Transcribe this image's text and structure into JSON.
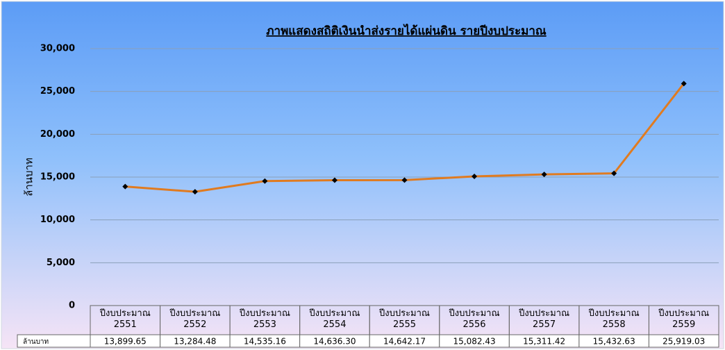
{
  "chart_data": {
    "type": "line",
    "title": "ภาพแสดงสถิติเงินนำส่งรายได้แผ่นดิน รายปีงบประมาณ",
    "y_label": "ล้านบาท",
    "categories": [
      "ปีงบประมาณ\n2551",
      "ปีงบประมาณ\n2552",
      "ปีงบประมาณ\n2553",
      "ปีงบประมาณ\n2554",
      "ปีงบประมาณ\n2555",
      "ปีงบประมาณ\n2556",
      "ปีงบประมาณ\n2557",
      "ปีงบประมาณ\n2558",
      "ปีงบประมาณ\n2559"
    ],
    "series": [
      {
        "name": "ล้านบาท",
        "color": "#e07b20",
        "values": [
          13899.65,
          13284.48,
          14535.16,
          14636.3,
          14642.17,
          15082.43,
          15311.42,
          15432.63,
          25919.03
        ],
        "value_labels": [
          "13,899.65",
          "13,284.48",
          "14,535.16",
          "14,636.30",
          "14,642.17",
          "15,082.43",
          "15,311.42",
          "15,432.63",
          "25,919.03"
        ]
      }
    ],
    "ylim": [
      0,
      30000
    ],
    "yticks": [
      0,
      {
        "value": 5000,
        "label": "5,000"
      },
      {
        "value": 10000,
        "label": "10,000"
      },
      {
        "value": 15000,
        "label": "15,000"
      },
      {
        "value": 20000,
        "label": "20,000"
      },
      {
        "value": 25000,
        "label": "25,000"
      },
      {
        "value": 30000,
        "label": "30,000"
      }
    ],
    "grid": true
  }
}
